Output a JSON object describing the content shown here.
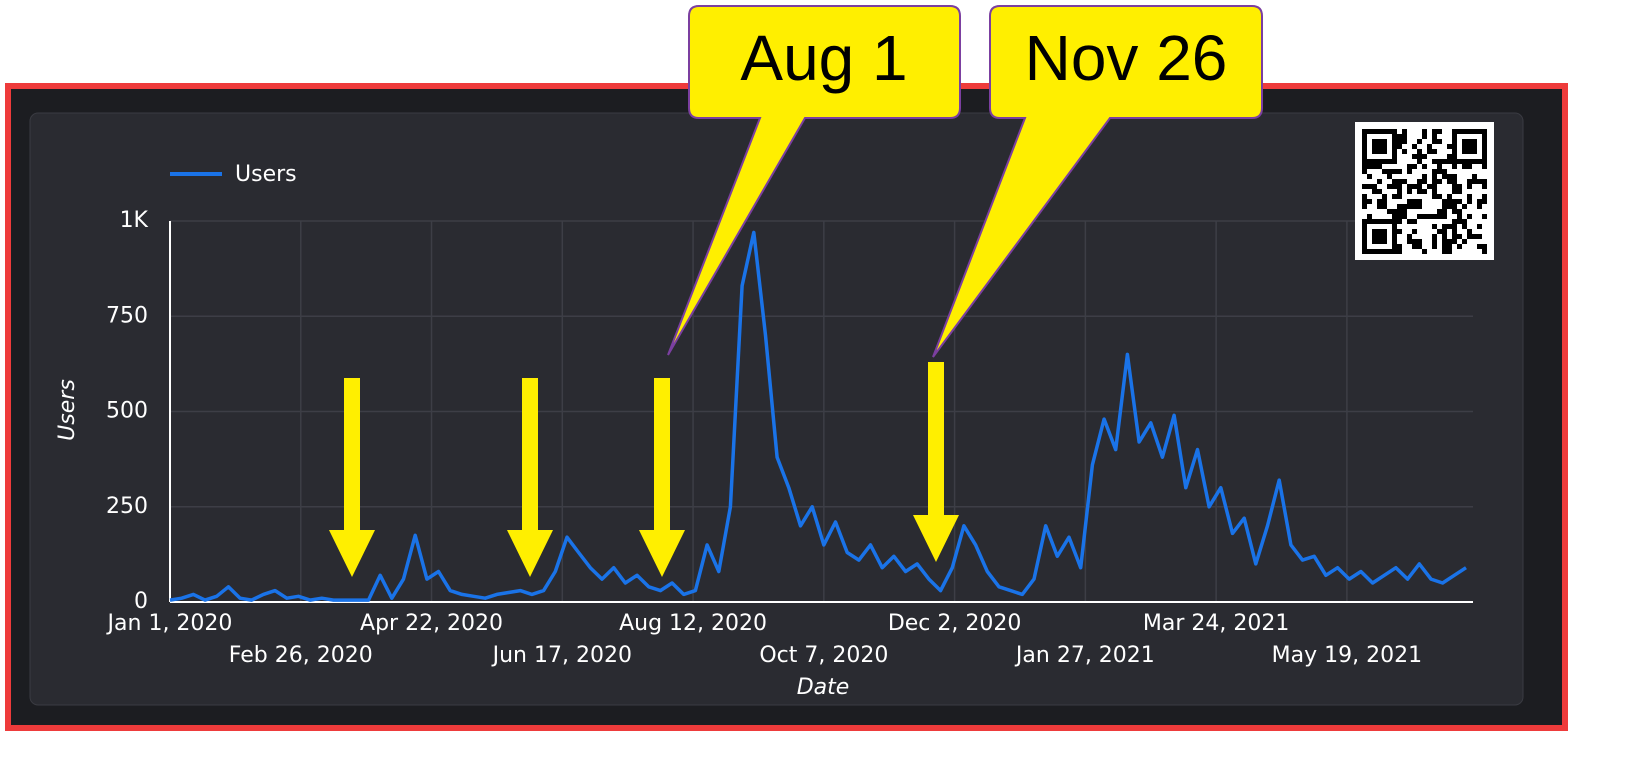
{
  "chart_data": {
    "type": "line",
    "legend": "top-left",
    "grid": true,
    "xlabel": "Date",
    "ylabel": "Users",
    "annotations": [
      "Aug 1",
      "Nov 26"
    ],
    "xlim": [
      "2020-01-01",
      "2021-07-12"
    ],
    "ylim": [
      0,
      1000
    ],
    "yticks": [
      0,
      250,
      500,
      750,
      {
        "value": 1000,
        "label": "1K"
      }
    ],
    "xticks": [
      {
        "value": "2020-01-01",
        "label": "Jan 1, 2020"
      },
      {
        "value": "2020-02-26",
        "label": "Feb 26, 2020"
      },
      {
        "value": "2020-04-22",
        "label": "Apr 22, 2020"
      },
      {
        "value": "2020-06-17",
        "label": "Jun 17, 2020"
      },
      {
        "value": "2020-08-12",
        "label": "Aug 12, 2020"
      },
      {
        "value": "2020-10-07",
        "label": "Oct 7, 2020"
      },
      {
        "value": "2020-12-02",
        "label": "Dec 2, 2020"
      },
      {
        "value": "2021-01-27",
        "label": "Jan 27, 2021"
      },
      {
        "value": "2021-03-24",
        "label": "Mar 24, 2021"
      },
      {
        "value": "2021-05-19",
        "label": "May 19, 2021"
      }
    ],
    "x": [
      "2020-01-01",
      "2020-01-06",
      "2020-01-11",
      "2020-01-16",
      "2020-01-21",
      "2020-01-26",
      "2020-01-31",
      "2020-02-05",
      "2020-02-10",
      "2020-02-15",
      "2020-02-20",
      "2020-02-25",
      "2020-03-01",
      "2020-03-06",
      "2020-03-11",
      "2020-03-16",
      "2020-03-21",
      "2020-03-26",
      "2020-03-31",
      "2020-04-05",
      "2020-04-10",
      "2020-04-15",
      "2020-04-20",
      "2020-04-25",
      "2020-04-30",
      "2020-05-05",
      "2020-05-10",
      "2020-05-15",
      "2020-05-20",
      "2020-05-25",
      "2020-05-30",
      "2020-06-04",
      "2020-06-09",
      "2020-06-14",
      "2020-06-19",
      "2020-06-24",
      "2020-06-29",
      "2020-07-04",
      "2020-07-09",
      "2020-07-14",
      "2020-07-19",
      "2020-07-24",
      "2020-07-29",
      "2020-08-03",
      "2020-08-08",
      "2020-08-13",
      "2020-08-18",
      "2020-08-23",
      "2020-08-28",
      "2020-09-02",
      "2020-09-07",
      "2020-09-12",
      "2020-09-17",
      "2020-09-22",
      "2020-09-27",
      "2020-10-02",
      "2020-10-07",
      "2020-10-12",
      "2020-10-17",
      "2020-10-22",
      "2020-10-27",
      "2020-11-01",
      "2020-11-06",
      "2020-11-11",
      "2020-11-16",
      "2020-11-21",
      "2020-11-26",
      "2020-12-01",
      "2020-12-06",
      "2020-12-11",
      "2020-12-16",
      "2020-12-21",
      "2020-12-26",
      "2020-12-31",
      "2021-01-05",
      "2021-01-10",
      "2021-01-15",
      "2021-01-20",
      "2021-01-25",
      "2021-01-30",
      "2021-02-04",
      "2021-02-09",
      "2021-02-14",
      "2021-02-19",
      "2021-02-24",
      "2021-03-01",
      "2021-03-06",
      "2021-03-11",
      "2021-03-16",
      "2021-03-21",
      "2021-03-26",
      "2021-03-31",
      "2021-04-05",
      "2021-04-10",
      "2021-04-15",
      "2021-04-20",
      "2021-04-25",
      "2021-04-30",
      "2021-05-05",
      "2021-05-10",
      "2021-05-15",
      "2021-05-20",
      "2021-05-25",
      "2021-05-30",
      "2021-06-04",
      "2021-06-09",
      "2021-06-14",
      "2021-06-19",
      "2021-06-24",
      "2021-06-29",
      "2021-07-04",
      "2021-07-09"
    ],
    "series": [
      {
        "name": "Users",
        "color": "#1a73e8",
        "values": [
          5,
          10,
          20,
          5,
          15,
          40,
          10,
          5,
          20,
          30,
          10,
          15,
          5,
          10,
          5,
          5,
          5,
          5,
          70,
          10,
          60,
          175,
          60,
          80,
          30,
          20,
          15,
          10,
          20,
          25,
          30,
          20,
          30,
          80,
          170,
          130,
          90,
          60,
          90,
          50,
          70,
          40,
          30,
          50,
          20,
          30,
          150,
          80,
          250,
          830,
          970,
          700,
          380,
          300,
          200,
          250,
          150,
          210,
          130,
          110,
          150,
          90,
          120,
          80,
          100,
          60,
          30,
          90,
          200,
          150,
          80,
          40,
          30,
          20,
          60,
          200,
          120,
          170,
          90,
          360,
          480,
          400,
          650,
          420,
          470,
          380,
          490,
          300,
          400,
          250,
          300,
          180,
          220,
          100,
          200,
          320,
          150,
          110,
          120,
          70,
          90,
          60,
          80,
          50,
          70,
          90,
          60,
          100,
          60,
          50,
          70,
          90
        ]
      }
    ]
  }
}
